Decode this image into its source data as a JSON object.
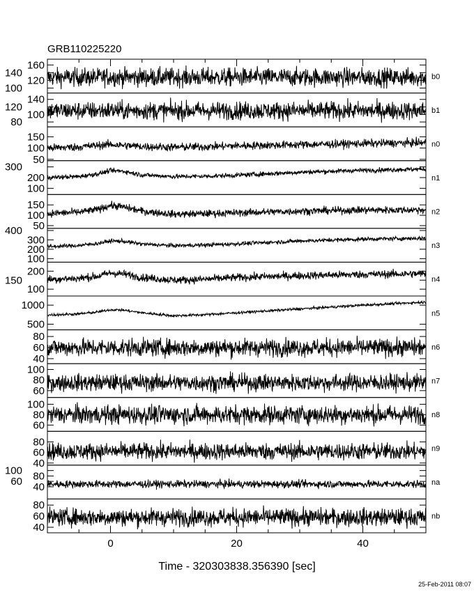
{
  "title": "GRB110225220",
  "timestamp": "25-Feb-2011 08:07",
  "chart_data": {
    "type": "line",
    "layout": "stacked panels sharing x axis",
    "xlabel": "Time - 320303838.356390 [sec]",
    "xlim": [
      -10,
      50
    ],
    "x_ticks": [
      0,
      20,
      40
    ],
    "x_tick_labels": [
      "0",
      "20",
      "40"
    ],
    "grid": false,
    "line_color": "#000000",
    "panels": [
      {
        "name": "b0",
        "ylim": [
          87,
          175
        ],
        "y_ticks": [
          100,
          120,
          140,
          160
        ],
        "scatter": 12,
        "x": [
          -10,
          -5,
          -2,
          0,
          2,
          5,
          10,
          15,
          20,
          30,
          40,
          50
        ],
        "mean": [
          128,
          128,
          128,
          129,
          128,
          128,
          128,
          128,
          128,
          128,
          128,
          128
        ]
      },
      {
        "name": "b1",
        "ylim": [
          67,
          157
        ],
        "y_ticks": [
          80,
          100,
          120,
          140
        ],
        "scatter": 12,
        "x": [
          -10,
          -5,
          -2,
          0,
          2,
          5,
          10,
          15,
          20,
          30,
          40,
          50
        ],
        "mean": [
          110,
          110,
          110,
          111,
          110,
          110,
          110,
          110,
          110,
          110,
          110,
          110
        ]
      },
      {
        "name": "n0",
        "ylim": [
          44,
          194
        ],
        "y_ticks": [
          50,
          100,
          150
        ],
        "scatter": 9,
        "x": [
          -10,
          -5,
          -2,
          0,
          2,
          5,
          10,
          15,
          20,
          30,
          40,
          50
        ],
        "mean": [
          100,
          105,
          112,
          116,
          112,
          107,
          104,
          106,
          110,
          115,
          120,
          124
        ]
      },
      {
        "name": "n1",
        "ylim": [
          42,
          358
        ],
        "y_ticks": [
          100,
          200,
          300
        ],
        "scatter": 11,
        "x": [
          -10,
          -5,
          -2,
          0,
          2,
          5,
          10,
          15,
          20,
          30,
          40,
          50
        ],
        "mean": [
          200,
          210,
          235,
          265,
          260,
          225,
          210,
          212,
          222,
          250,
          268,
          280
        ]
      },
      {
        "name": "n2",
        "ylim": [
          37,
          200
        ],
        "y_ticks": [
          50,
          100,
          150
        ],
        "scatter": 9,
        "x": [
          -10,
          -5,
          -2,
          0,
          2,
          5,
          10,
          15,
          20,
          30,
          40,
          50
        ],
        "mean": [
          108,
          115,
          128,
          148,
          140,
          120,
          105,
          108,
          112,
          120,
          125,
          126
        ]
      },
      {
        "name": "n3",
        "ylim": [
          62,
          423
        ],
        "y_ticks": [
          100,
          200,
          300,
          400
        ],
        "scatter": 11,
        "x": [
          -10,
          -5,
          -2,
          0,
          2,
          5,
          10,
          15,
          20,
          30,
          40,
          50
        ],
        "mean": [
          228,
          240,
          262,
          288,
          285,
          255,
          238,
          245,
          258,
          288,
          308,
          318
        ]
      },
      {
        "name": "n4",
        "ylim": [
          62,
          250
        ],
        "y_ticks": [
          100,
          150,
          200
        ],
        "scatter": 11,
        "x": [
          -10,
          -5,
          -2,
          0,
          2,
          5,
          10,
          15,
          20,
          30,
          40,
          50
        ],
        "mean": [
          155,
          160,
          172,
          190,
          185,
          165,
          150,
          155,
          165,
          175,
          182,
          186
        ]
      },
      {
        "name": "n5",
        "ylim": [
          352,
          1240
        ],
        "y_ticks": [
          500,
          1000
        ],
        "scatter": 18,
        "x": [
          -10,
          -5,
          -2,
          0,
          2,
          5,
          10,
          15,
          20,
          30,
          40,
          50
        ],
        "mean": [
          740,
          770,
          820,
          880,
          870,
          800,
          720,
          750,
          800,
          900,
          1000,
          1080
        ]
      },
      {
        "name": "n6",
        "ylim": [
          31,
          92
        ],
        "y_ticks": [
          40,
          60,
          80
        ],
        "scatter": 8,
        "x": [
          -10,
          50
        ],
        "mean": [
          60,
          60
        ]
      },
      {
        "name": "n7",
        "ylim": [
          47,
          111
        ],
        "y_ticks": [
          60,
          80,
          100
        ],
        "scatter": 8,
        "x": [
          -10,
          50
        ],
        "mean": [
          75,
          75
        ]
      },
      {
        "name": "n8",
        "ylim": [
          48,
          113
        ],
        "y_ticks": [
          60,
          80,
          100
        ],
        "scatter": 9,
        "x": [
          -10,
          50
        ],
        "mean": [
          80,
          80
        ]
      },
      {
        "name": "n9",
        "ylim": [
          36,
          100
        ],
        "y_ticks": [
          40,
          60,
          80
        ],
        "scatter": 8,
        "x": [
          -10,
          50
        ],
        "mean": [
          62,
          62
        ]
      },
      {
        "name": "na",
        "ylim": [
          -5,
          120
        ],
        "y_ticks": [
          40,
          60,
          80,
          100
        ],
        "scatter": 7,
        "x": [
          -10,
          50
        ],
        "mean": [
          50,
          50
        ]
      },
      {
        "name": "nb",
        "ylim": [
          30,
          91
        ],
        "y_ticks": [
          40,
          60,
          80
        ],
        "scatter": 8,
        "x": [
          -10,
          50
        ],
        "mean": [
          58,
          58
        ]
      }
    ]
  }
}
